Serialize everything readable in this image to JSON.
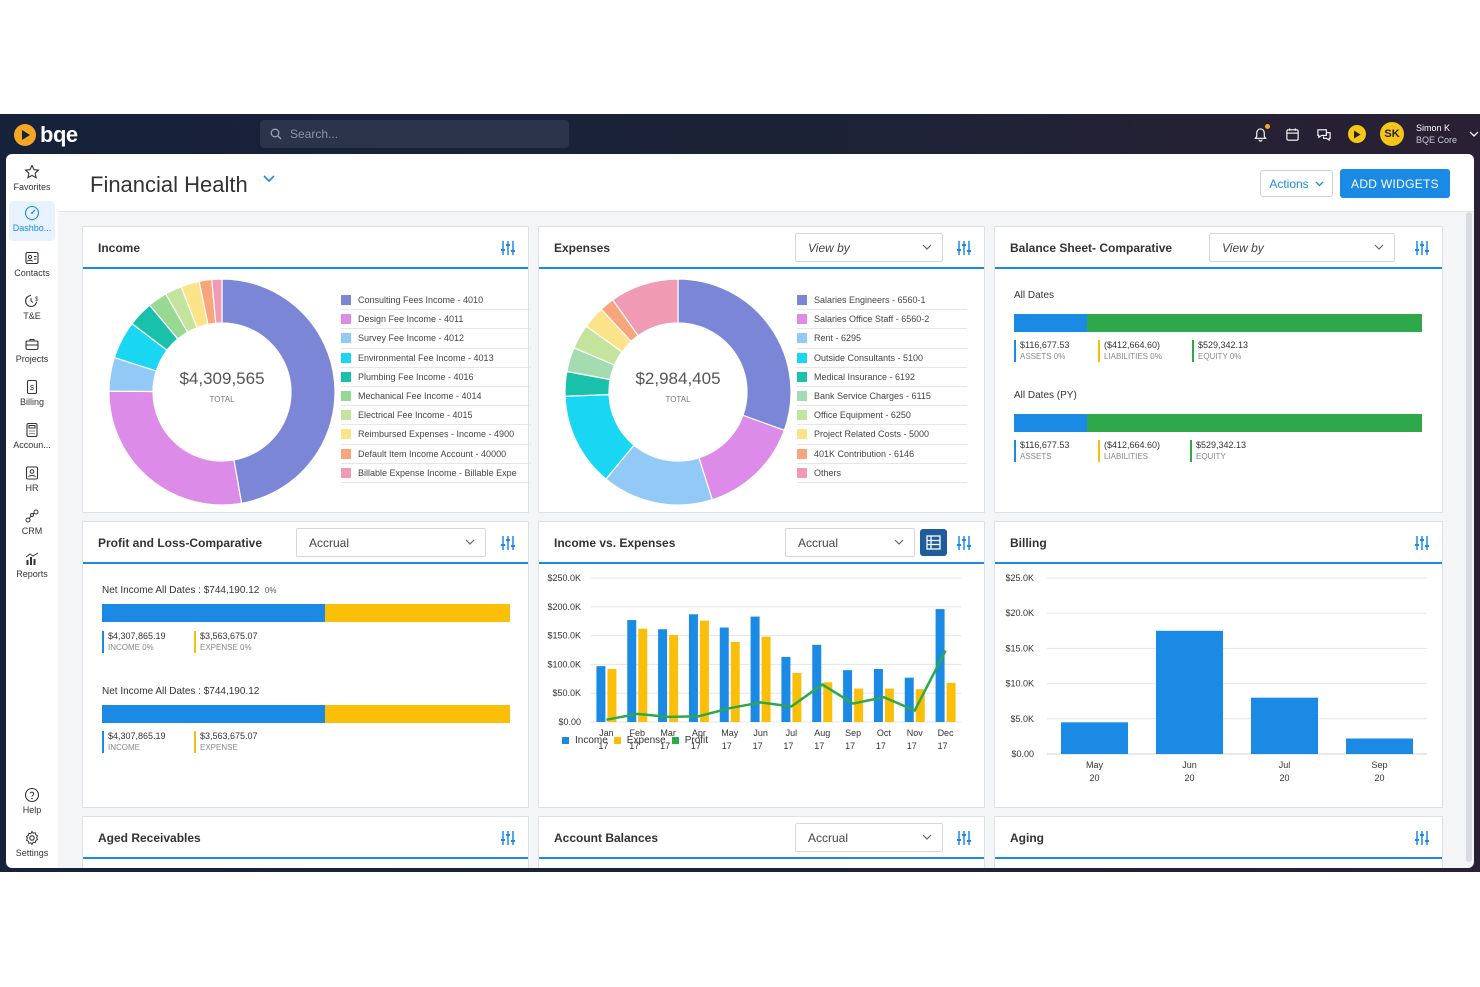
{
  "app": {
    "name": "bqe",
    "search_placeholder": "Search...",
    "user_name": "Simon K",
    "user_org": "BQE Core",
    "user_initials": "SK"
  },
  "colors": {
    "accent": "#1a8ae5",
    "topbar": "#1c2236",
    "income_bar": "#1a8ae5",
    "expense_bar": "#fbbf0a",
    "profit_line": "#2ea84a",
    "equity_bar": "#2ea84a"
  },
  "sidebar": {
    "items": [
      {
        "label": "Favorites",
        "icon": "star-icon"
      },
      {
        "label": "Dashbo...",
        "icon": "dashboard-icon"
      },
      {
        "label": "Contacts",
        "icon": "contacts-icon"
      },
      {
        "label": "T&E",
        "icon": "clock-dollar-icon"
      },
      {
        "label": "Projects",
        "icon": "briefcase-icon"
      },
      {
        "label": "Billing",
        "icon": "invoice-icon"
      },
      {
        "label": "Accoun...",
        "icon": "calculator-icon"
      },
      {
        "label": "HR",
        "icon": "id-badge-icon"
      },
      {
        "label": "CRM",
        "icon": "network-icon"
      },
      {
        "label": "Reports",
        "icon": "chart-icon"
      },
      {
        "label": "Help",
        "icon": "help-icon"
      },
      {
        "label": "Settings",
        "icon": "gear-icon"
      }
    ]
  },
  "page": {
    "title": "Financial Health",
    "actions_label": "Actions",
    "add_widgets_label": "ADD WIDGETS"
  },
  "widgets": {
    "income": {
      "title": "Income",
      "total": "$4,309,565",
      "total_label": "TOTAL",
      "legend": [
        {
          "label": "Consulting Fees Income - 4010",
          "color": "#7b86d6"
        },
        {
          "label": "Design Fee Income - 4011",
          "color": "#dc8be8"
        },
        {
          "label": "Survey Fee Income - 4012",
          "color": "#93c9f7"
        },
        {
          "label": "Environmental Fee Income - 4013",
          "color": "#19d7f2"
        },
        {
          "label": "Plumbing Fee Income - 4016",
          "color": "#19c1aa"
        },
        {
          "label": "Mechanical Fee Income - 4014",
          "color": "#97d992"
        },
        {
          "label": "Electrical Fee Income - 4015",
          "color": "#c4e39c"
        },
        {
          "label": "Reimbursed Expenses - Income - 4900",
          "color": "#fbe38a"
        },
        {
          "label": "Default Item Income Account - 40000",
          "color": "#f7a57c"
        },
        {
          "label": "Billable Expense Income - Billable Expe",
          "color": "#f19ab4"
        }
      ]
    },
    "expenses": {
      "title": "Expenses",
      "view_by": "View by",
      "total": "$2,984,405",
      "total_label": "TOTAL",
      "legend": [
        {
          "label": "Salaries Engineers - 6560-1",
          "color": "#7b86d6"
        },
        {
          "label": "Salaries Office Staff - 6560-2",
          "color": "#dc8be8"
        },
        {
          "label": "Rent - 6295",
          "color": "#93c9f7"
        },
        {
          "label": "Outside Consultants - 5100",
          "color": "#19d7f2"
        },
        {
          "label": "Medical Insurance - 6192",
          "color": "#19c1aa"
        },
        {
          "label": "Bank Service Charges - 6115",
          "color": "#a5dbb0"
        },
        {
          "label": "Office Equipment - 6250",
          "color": "#c4e39c"
        },
        {
          "label": "Project Related Costs - 5000",
          "color": "#fbe38a"
        },
        {
          "label": "401K Contribution - 6146",
          "color": "#f7a57c"
        },
        {
          "label": "Others",
          "color": "#f19ab4"
        }
      ]
    },
    "balance": {
      "title": "Balance Sheet- Comparative",
      "view_by": "View by",
      "groups": [
        {
          "label": "All Dates",
          "assets": "$116,677.53",
          "assets_k": "ASSETS 0%",
          "liab": "($412,664.60)",
          "liab_k": "LIABILITIES 0%",
          "equity": "$529,342.13",
          "equity_k": "EQUITY 0%",
          "assets_frac": 0.18
        },
        {
          "label": "All Dates (PY)",
          "assets": "$116,677.53",
          "assets_k": "ASSETS",
          "liab": "($412,664.60)",
          "liab_k": "LIABILITIES",
          "equity": "$529,342.13",
          "equity_k": "EQUITY",
          "assets_frac": 0.18
        }
      ]
    },
    "pl": {
      "title": "Profit and Loss-Comparative",
      "basis": "Accrual",
      "groups": [
        {
          "label": "Net Income All Dates : $744,190.12",
          "pct": "0%",
          "income": "$4,307,865.19",
          "income_k": "INCOME 0%",
          "expense": "$3,563,675.07",
          "expense_k": "EXPENSE 0%",
          "income_frac": 0.547
        },
        {
          "label": "Net Income All Dates : $744,190.12",
          "pct": "",
          "income": "$4,307,865.19",
          "income_k": "INCOME",
          "expense": "$3,563,675.07",
          "expense_k": "EXPENSE",
          "income_frac": 0.547
        }
      ]
    },
    "ive": {
      "title": "Income vs. Expenses",
      "basis": "Accrual",
      "legend_income": "Income",
      "legend_expense": "Expense",
      "legend_profit": "Profit"
    },
    "billing": {
      "title": "Billing"
    },
    "aged": {
      "title": "Aged Receivables"
    },
    "account_balances": {
      "title": "Account Balances",
      "basis": "Accrual"
    },
    "aging": {
      "title": "Aging"
    }
  },
  "chart_data": [
    {
      "type": "pie",
      "title": "Income",
      "categories": [
        "Consulting Fees Income - 4010",
        "Design Fee Income - 4011",
        "Survey Fee Income - 4012",
        "Environmental Fee Income - 4013",
        "Plumbing Fee Income - 4016",
        "Mechanical Fee Income - 4014",
        "Electrical Fee Income - 4015",
        "Reimbursed Expenses - Income - 4900",
        "Default Item Income Account - 40000",
        "Billable Expense Income - Billable Expe"
      ],
      "values": [
        39.3,
        23.2,
        4.0,
        4.5,
        3.0,
        2.3,
        2.0,
        2.2,
        1.5,
        1.2
      ]
    },
    {
      "type": "pie",
      "title": "Expenses",
      "categories": [
        "Salaries Engineers - 6560-1",
        "Salaries Office Staff - 6560-2",
        "Rent - 6295",
        "Outside Consultants - 5100",
        "Medical Insurance - 6192",
        "Bank Service Charges - 6115",
        "Office Equipment - 6250",
        "Project Related Costs - 5000",
        "401K Contribution - 6146",
        "Others"
      ],
      "values": [
        30.5,
        14.6,
        15.9,
        13.4,
        3.5,
        3.5,
        3.5,
        3.2,
        2.1,
        9.8
      ]
    },
    {
      "type": "bar",
      "title": "Income vs. Expenses",
      "categories": [
        "Jan 17",
        "Feb 17",
        "Mar 17",
        "Apr 17",
        "May 17",
        "Jun 17",
        "Jul 17",
        "Aug 17",
        "Sep 17",
        "Oct 17",
        "Nov 17",
        "Dec 17"
      ],
      "series": [
        {
          "name": "Income",
          "values": [
            97000,
            177000,
            161000,
            187000,
            164000,
            183000,
            113000,
            134000,
            90000,
            92000,
            77000,
            196000
          ]
        },
        {
          "name": "Expense",
          "values": [
            92000,
            162000,
            151000,
            176000,
            139000,
            148000,
            85000,
            69000,
            58000,
            58000,
            57000,
            68000
          ]
        },
        {
          "name": "Profit",
          "values": [
            4000,
            14000,
            9000,
            10000,
            24000,
            34000,
            27000,
            65000,
            32000,
            43000,
            20000,
            124000
          ]
        }
      ],
      "ylim": [
        0,
        250000
      ],
      "yticks": [
        "$0.00",
        "$50.0K",
        "$100.0K",
        "$150.0K",
        "$200.0K",
        "$250.0K"
      ]
    },
    {
      "type": "bar",
      "title": "Billing",
      "categories": [
        "May 20",
        "Jun 20",
        "Jul 20",
        "Sep 20"
      ],
      "values": [
        4500,
        17500,
        8000,
        2200
      ],
      "ylim": [
        0,
        25000
      ],
      "yticks": [
        "$0.00",
        "$5.0K",
        "$10.0K",
        "$15.0K",
        "$20.0K",
        "$25.0K"
      ]
    }
  ]
}
